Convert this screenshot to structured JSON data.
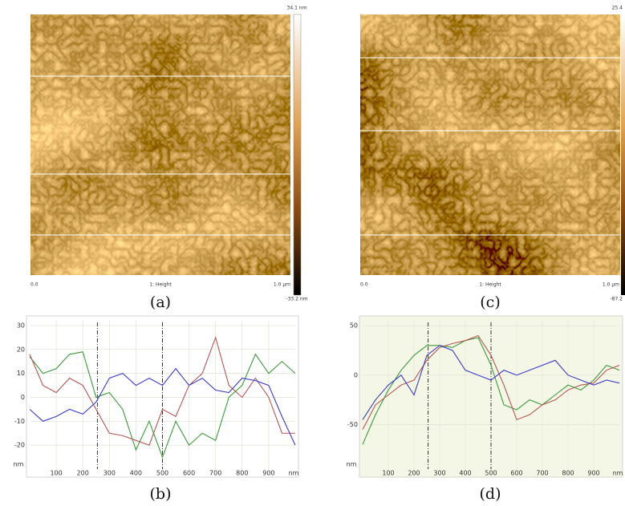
{
  "images": [
    {
      "label": "(a)",
      "scale_max": "34.1 nm",
      "scale_min": "-33.2 nm",
      "x_start": "0.0",
      "x_mid": "1: Height",
      "x_end": "1.0 µm"
    },
    {
      "label": "(c)",
      "scale_max": "25.4",
      "scale_min": "-87.2",
      "x_start": "0.0",
      "x_mid": "1: Height",
      "x_end": "1.0 µm"
    }
  ],
  "chart_data": [
    {
      "type": "line",
      "label": "(b)",
      "ylabel": "nm",
      "xlabel": "nm",
      "x": [
        0,
        50,
        100,
        150,
        200,
        250,
        300,
        350,
        400,
        450,
        500,
        550,
        600,
        650,
        700,
        750,
        800,
        850,
        900,
        950,
        1000
      ],
      "xlim": [
        0,
        1000
      ],
      "ylim": [
        -30,
        32
      ],
      "xticks": [
        100,
        200,
        300,
        400,
        500,
        600,
        700,
        800,
        900
      ],
      "yticks": [
        30,
        20,
        10,
        0,
        -10,
        -20
      ],
      "markers": [
        255,
        500
      ],
      "grid": true,
      "series": [
        {
          "color": "#3c9a3c",
          "values": [
            17,
            10,
            12,
            18,
            19,
            0,
            2,
            -5,
            -22,
            -10,
            -25,
            -10,
            -20,
            -15,
            -18,
            0,
            5,
            18,
            10,
            15,
            10
          ]
        },
        {
          "color": "#b85656",
          "values": [
            18,
            5,
            2,
            8,
            5,
            -5,
            -15,
            -16,
            -18,
            -20,
            -5,
            -8,
            5,
            10,
            25,
            5,
            0,
            8,
            0,
            -15,
            -15
          ]
        },
        {
          "color": "#3a3ad0",
          "values": [
            -5,
            -10,
            -8,
            -5,
            -7,
            -2,
            8,
            10,
            5,
            8,
            5,
            12,
            5,
            8,
            3,
            2,
            8,
            7,
            5,
            -8,
            -20
          ]
        }
      ]
    },
    {
      "type": "line",
      "label": "(d)",
      "ylabel": "nm",
      "xlabel": "nm",
      "x": [
        0,
        50,
        100,
        150,
        200,
        250,
        300,
        350,
        400,
        450,
        500,
        550,
        600,
        650,
        700,
        750,
        800,
        850,
        900,
        950,
        1000
      ],
      "xlim": [
        0,
        1000
      ],
      "ylim": [
        -95,
        55
      ],
      "xticks": [
        100,
        200,
        300,
        400,
        500,
        600,
        700,
        800,
        900
      ],
      "yticks": [
        50,
        0,
        -50
      ],
      "markers": [
        255,
        500
      ],
      "grid": true,
      "series": [
        {
          "color": "#3c9a3c",
          "values": [
            -70,
            -40,
            -15,
            5,
            20,
            30,
            30,
            28,
            35,
            38,
            10,
            -30,
            -35,
            -25,
            -30,
            -20,
            -10,
            -15,
            -5,
            10,
            5
          ]
        },
        {
          "color": "#b85656",
          "values": [
            -55,
            -30,
            -20,
            -10,
            -5,
            15,
            28,
            32,
            35,
            40,
            20,
            -10,
            -45,
            -40,
            -30,
            -25,
            -15,
            -10,
            -8,
            5,
            10
          ]
        },
        {
          "color": "#3a3ad0",
          "values": [
            -45,
            -25,
            -10,
            0,
            -20,
            20,
            30,
            25,
            5,
            0,
            -5,
            5,
            0,
            5,
            10,
            15,
            0,
            -5,
            -10,
            -5,
            -8
          ]
        }
      ]
    }
  ]
}
